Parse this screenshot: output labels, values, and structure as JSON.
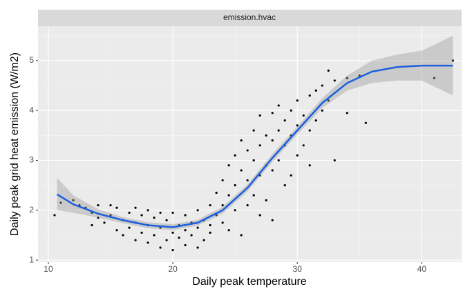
{
  "chart_data": {
    "type": "scatter",
    "strip_label": "emission.hvac",
    "x_label": "Daily peak temperature",
    "y_label": "Daily peak grid heat emission (W/m2)",
    "xlim": [
      9.17,
      43.2
    ],
    "ylim": [
      0.96,
      5.69
    ],
    "xticks": [
      10,
      20,
      30,
      40
    ],
    "yticks": [
      1,
      2,
      3,
      4,
      5
    ],
    "x_minor_ticks": [
      15,
      25,
      35
    ],
    "y_minor_ticks": [
      1.5,
      2.5,
      3.5,
      4.5,
      5.5
    ],
    "grid": true,
    "point_color": "#000000",
    "x": [
      10.5,
      11,
      12,
      12.5,
      13,
      13.5,
      13.5,
      14,
      14,
      14.5,
      15,
      15,
      15.5,
      15.5,
      16,
      16,
      16.5,
      16.5,
      17,
      17,
      17,
      17.5,
      17.5,
      18,
      18,
      18,
      18.5,
      18.5,
      19,
      19,
      19,
      19.5,
      19.5,
      20,
      20,
      20,
      20.5,
      20.5,
      21,
      21,
      21,
      21.5,
      21.5,
      22,
      22,
      22,
      22.5,
      22.5,
      23,
      23,
      23,
      23.5,
      23.5,
      24,
      24,
      24,
      24.5,
      24.5,
      24.5,
      25,
      25,
      25,
      25.5,
      25.5,
      25.5,
      26,
      26,
      26,
      26.5,
      26.5,
      26.5,
      27,
      27,
      27,
      27,
      27.5,
      27.5,
      27.5,
      28,
      28,
      28,
      28,
      28.5,
      28.5,
      28.5,
      29,
      29,
      29,
      29.5,
      29.5,
      29.5,
      30,
      30,
      30,
      30.5,
      30.5,
      31,
      31,
      31,
      31.5,
      31.5,
      32,
      32,
      32.5,
      32.5,
      33,
      33,
      34,
      34,
      35,
      35.5,
      41,
      42.5
    ],
    "y": [
      1.9,
      2.15,
      2.2,
      2.1,
      2.05,
      1.95,
      1.7,
      2.1,
      1.85,
      1.75,
      2.1,
      1.9,
      1.6,
      2.05,
      1.8,
      1.5,
      1.95,
      1.65,
      2.05,
      1.4,
      1.75,
      1.9,
      1.55,
      2.0,
      1.7,
      1.35,
      1.85,
      1.5,
      1.95,
      1.25,
      1.65,
      1.8,
      1.4,
      1.95,
      1.55,
      1.2,
      1.7,
      1.45,
      1.9,
      1.6,
      1.3,
      1.75,
      1.5,
      1.65,
      1.25,
      2.0,
      1.8,
      1.4,
      2.1,
      1.7,
      1.55,
      2.35,
      1.9,
      2.6,
      2.1,
      1.75,
      2.9,
      2.3,
      1.6,
      3.1,
      2.5,
      2.0,
      3.4,
      2.8,
      1.5,
      3.2,
      2.6,
      2.1,
      3.6,
      3.0,
      2.3,
      3.9,
      3.3,
      2.7,
      1.9,
      3.5,
      2.9,
      2.2,
      3.95,
      3.4,
      2.8,
      1.8,
      4.1,
      3.6,
      3.0,
      3.8,
      3.3,
      2.5,
      4.0,
      3.5,
      2.7,
      4.2,
      3.7,
      3.1,
      3.9,
      3.3,
      4.3,
      3.6,
      2.9,
      4.4,
      3.8,
      4.5,
      4.0,
      4.8,
      4.2,
      4.6,
      3.0,
      4.65,
      3.95,
      4.7,
      3.75,
      4.65,
      5.0
    ],
    "smooth": {
      "color": "#1a5fde",
      "ribbon_color": "#999999",
      "x": [
        10.7,
        12,
        14,
        16,
        18,
        20,
        22,
        24,
        26,
        28,
        30,
        32,
        34,
        36,
        38,
        40,
        42.5
      ],
      "y": [
        2.32,
        2.12,
        1.93,
        1.8,
        1.7,
        1.66,
        1.75,
        2.0,
        2.45,
        3.05,
        3.6,
        4.15,
        4.55,
        4.78,
        4.87,
        4.9,
        4.9
      ],
      "lower": [
        2.0,
        1.95,
        1.85,
        1.74,
        1.64,
        1.6,
        1.69,
        1.93,
        2.38,
        2.97,
        3.52,
        4.05,
        4.4,
        4.55,
        4.6,
        4.6,
        4.3
      ],
      "upper": [
        2.65,
        2.3,
        2.02,
        1.86,
        1.76,
        1.72,
        1.81,
        2.07,
        2.52,
        3.13,
        3.68,
        4.25,
        4.7,
        5.0,
        5.12,
        5.2,
        5.5
      ]
    }
  }
}
